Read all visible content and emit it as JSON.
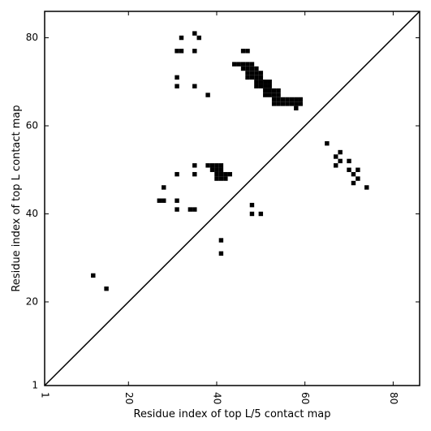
{
  "chart_data": {
    "type": "heatmap",
    "xlabel": "Residue index of top L/5 contact map",
    "ylabel": "Residue index of top L contact map",
    "xlim": [
      1,
      86
    ],
    "ylim": [
      1,
      86
    ],
    "x_ticks": [
      1,
      20,
      40,
      60,
      80
    ],
    "y_ticks": [
      1,
      20,
      40,
      60,
      80
    ],
    "grid": false,
    "diagonal": true,
    "cell_color": "#000000",
    "contacts": [
      [
        32,
        80
      ],
      [
        35,
        81
      ],
      [
        36,
        80
      ],
      [
        31,
        77
      ],
      [
        32,
        77
      ],
      [
        35,
        77
      ],
      [
        46,
        77
      ],
      [
        47,
        77
      ],
      [
        44,
        74
      ],
      [
        45,
        74
      ],
      [
        46,
        74
      ],
      [
        47,
        74
      ],
      [
        48,
        74
      ],
      [
        46,
        73
      ],
      [
        47,
        73
      ],
      [
        48,
        73
      ],
      [
        49,
        73
      ],
      [
        47,
        72
      ],
      [
        48,
        72
      ],
      [
        49,
        72
      ],
      [
        50,
        72
      ],
      [
        47,
        71
      ],
      [
        48,
        71
      ],
      [
        49,
        71
      ],
      [
        50,
        71
      ],
      [
        49,
        70
      ],
      [
        50,
        70
      ],
      [
        51,
        70
      ],
      [
        52,
        70
      ],
      [
        49,
        69
      ],
      [
        50,
        69
      ],
      [
        51,
        69
      ],
      [
        52,
        69
      ],
      [
        51,
        68
      ],
      [
        52,
        68
      ],
      [
        53,
        68
      ],
      [
        54,
        68
      ],
      [
        51,
        67
      ],
      [
        52,
        67
      ],
      [
        53,
        67
      ],
      [
        54,
        67
      ],
      [
        53,
        66
      ],
      [
        54,
        66
      ],
      [
        55,
        66
      ],
      [
        56,
        66
      ],
      [
        57,
        66
      ],
      [
        58,
        66
      ],
      [
        59,
        66
      ],
      [
        53,
        65
      ],
      [
        54,
        65
      ],
      [
        55,
        65
      ],
      [
        56,
        65
      ],
      [
        57,
        65
      ],
      [
        58,
        65
      ],
      [
        59,
        65
      ],
      [
        58,
        64
      ],
      [
        31,
        71
      ],
      [
        31,
        69
      ],
      [
        35,
        69
      ],
      [
        38,
        67
      ],
      [
        65,
        56
      ],
      [
        68,
        54
      ],
      [
        67,
        53
      ],
      [
        68,
        52
      ],
      [
        70,
        52
      ],
      [
        67,
        51
      ],
      [
        70,
        50
      ],
      [
        72,
        50
      ],
      [
        71,
        49
      ],
      [
        72,
        48
      ],
      [
        71,
        47
      ],
      [
        74,
        46
      ],
      [
        35,
        51
      ],
      [
        38,
        51
      ],
      [
        39,
        51
      ],
      [
        40,
        51
      ],
      [
        41,
        51
      ],
      [
        39,
        50
      ],
      [
        40,
        50
      ],
      [
        41,
        50
      ],
      [
        31,
        49
      ],
      [
        35,
        49
      ],
      [
        40,
        49
      ],
      [
        41,
        49
      ],
      [
        42,
        49
      ],
      [
        43,
        49
      ],
      [
        40,
        48
      ],
      [
        41,
        48
      ],
      [
        42,
        48
      ],
      [
        28,
        46
      ],
      [
        27,
        43
      ],
      [
        28,
        43
      ],
      [
        31,
        43
      ],
      [
        48,
        42
      ],
      [
        31,
        41
      ],
      [
        34,
        41
      ],
      [
        35,
        41
      ],
      [
        48,
        40
      ],
      [
        50,
        40
      ],
      [
        41,
        34
      ],
      [
        41,
        31
      ],
      [
        12,
        26
      ],
      [
        15,
        23
      ]
    ]
  }
}
